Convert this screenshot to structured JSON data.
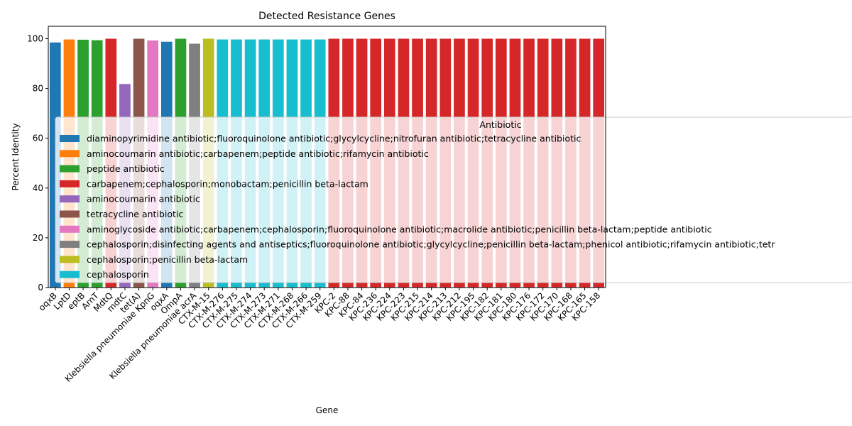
{
  "chart_data": {
    "type": "bar",
    "title": "Detected Resistance Genes",
    "xlabel": "Gene",
    "ylabel": "Percent Identity",
    "ylim": [
      0,
      105
    ],
    "yticks": [
      0,
      20,
      40,
      60,
      80,
      100
    ],
    "grid": false,
    "legend": {
      "title": "Antibiotic",
      "placement": "center-right",
      "entries": [
        {
          "label": "diaminopyrimidine antibiotic;fluoroquinolone antibiotic;glycylcycline;nitrofuran antibiotic;tetracycline antibiotic",
          "color": "#1f77b4"
        },
        {
          "label": "aminocoumarin antibiotic;carbapenem;peptide antibiotic;rifamycin antibiotic",
          "color": "#ff7f0e"
        },
        {
          "label": "peptide antibiotic",
          "color": "#2ca02c"
        },
        {
          "label": "carbapenem;cephalosporin;monobactam;penicillin beta-lactam",
          "color": "#d62728"
        },
        {
          "label": "aminocoumarin antibiotic",
          "color": "#9467bd"
        },
        {
          "label": "tetracycline antibiotic",
          "color": "#8c564b"
        },
        {
          "label": "aminoglycoside antibiotic;carbapenem;cephalosporin;fluoroquinolone antibiotic;macrolide antibiotic;penicillin beta-lactam;peptide antibiotic",
          "color": "#e377c2"
        },
        {
          "label": "cephalosporin;disinfecting agents and antiseptics;fluoroquinolone antibiotic;glycylcycline;penicillin beta-lactam;phenicol antibiotic;rifamycin antibiotic;tetr",
          "color": "#7f7f7f"
        },
        {
          "label": "cephalosporin;penicillin beta-lactam",
          "color": "#bcbd22"
        },
        {
          "label": "cephalosporin",
          "color": "#17becf"
        }
      ]
    },
    "bars": [
      {
        "gene": "oqxB",
        "value": 98.5,
        "color": "#1f77b4"
      },
      {
        "gene": "LptD",
        "value": 99.7,
        "color": "#ff7f0e"
      },
      {
        "gene": "eptB",
        "value": 99.6,
        "color": "#2ca02c"
      },
      {
        "gene": "ArnT",
        "value": 99.4,
        "color": "#2ca02c"
      },
      {
        "gene": "MdtQ",
        "value": 100,
        "color": "#d62728"
      },
      {
        "gene": "mdtC",
        "value": 81.8,
        "color": "#9467bd"
      },
      {
        "gene": "tet(A)",
        "value": 100,
        "color": "#8c564b"
      },
      {
        "gene": "Klebsiella pneumoniae KpnG",
        "value": 99.3,
        "color": "#e377c2"
      },
      {
        "gene": "oqxA",
        "value": 98.8,
        "color": "#1f77b4"
      },
      {
        "gene": "OmpA",
        "value": 100,
        "color": "#2ca02c"
      },
      {
        "gene": "Klebsiella pneumoniae acrA",
        "value": 98.0,
        "color": "#7f7f7f"
      },
      {
        "gene": "CTX-M-15",
        "value": 100,
        "color": "#bcbd22"
      },
      {
        "gene": "CTX-M-276",
        "value": 99.7,
        "color": "#17becf"
      },
      {
        "gene": "CTX-M-275",
        "value": 99.7,
        "color": "#17becf"
      },
      {
        "gene": "CTX-M-274",
        "value": 99.7,
        "color": "#17becf"
      },
      {
        "gene": "CTX-M-273",
        "value": 99.7,
        "color": "#17becf"
      },
      {
        "gene": "CTX-M-271",
        "value": 99.7,
        "color": "#17becf"
      },
      {
        "gene": "CTX-M-268",
        "value": 99.7,
        "color": "#17becf"
      },
      {
        "gene": "CTX-M-266",
        "value": 99.7,
        "color": "#17becf"
      },
      {
        "gene": "CTX-M-259",
        "value": 99.7,
        "color": "#17becf"
      },
      {
        "gene": "KPC-2",
        "value": 100,
        "color": "#d62728"
      },
      {
        "gene": "KPC-88",
        "value": 100,
        "color": "#d62728"
      },
      {
        "gene": "KPC-84",
        "value": 100,
        "color": "#d62728"
      },
      {
        "gene": "KPC-236",
        "value": 100,
        "color": "#d62728"
      },
      {
        "gene": "KPC-224",
        "value": 100,
        "color": "#d62728"
      },
      {
        "gene": "KPC-223",
        "value": 100,
        "color": "#d62728"
      },
      {
        "gene": "KPC-215",
        "value": 100,
        "color": "#d62728"
      },
      {
        "gene": "KPC-214",
        "value": 100,
        "color": "#d62728"
      },
      {
        "gene": "KPC-213",
        "value": 100,
        "color": "#d62728"
      },
      {
        "gene": "KPC-212",
        "value": 100,
        "color": "#d62728"
      },
      {
        "gene": "KPC-195",
        "value": 100,
        "color": "#d62728"
      },
      {
        "gene": "KPC-182",
        "value": 100,
        "color": "#d62728"
      },
      {
        "gene": "KPC-181",
        "value": 100,
        "color": "#d62728"
      },
      {
        "gene": "KPC-180",
        "value": 100,
        "color": "#d62728"
      },
      {
        "gene": "KPC-176",
        "value": 100,
        "color": "#d62728"
      },
      {
        "gene": "KPC-172",
        "value": 100,
        "color": "#d62728"
      },
      {
        "gene": "KPC-170",
        "value": 100,
        "color": "#d62728"
      },
      {
        "gene": "KPC-168",
        "value": 100,
        "color": "#d62728"
      },
      {
        "gene": "KPC-165",
        "value": 100,
        "color": "#d62728"
      },
      {
        "gene": "KPC-158",
        "value": 100,
        "color": "#d62728"
      }
    ]
  }
}
